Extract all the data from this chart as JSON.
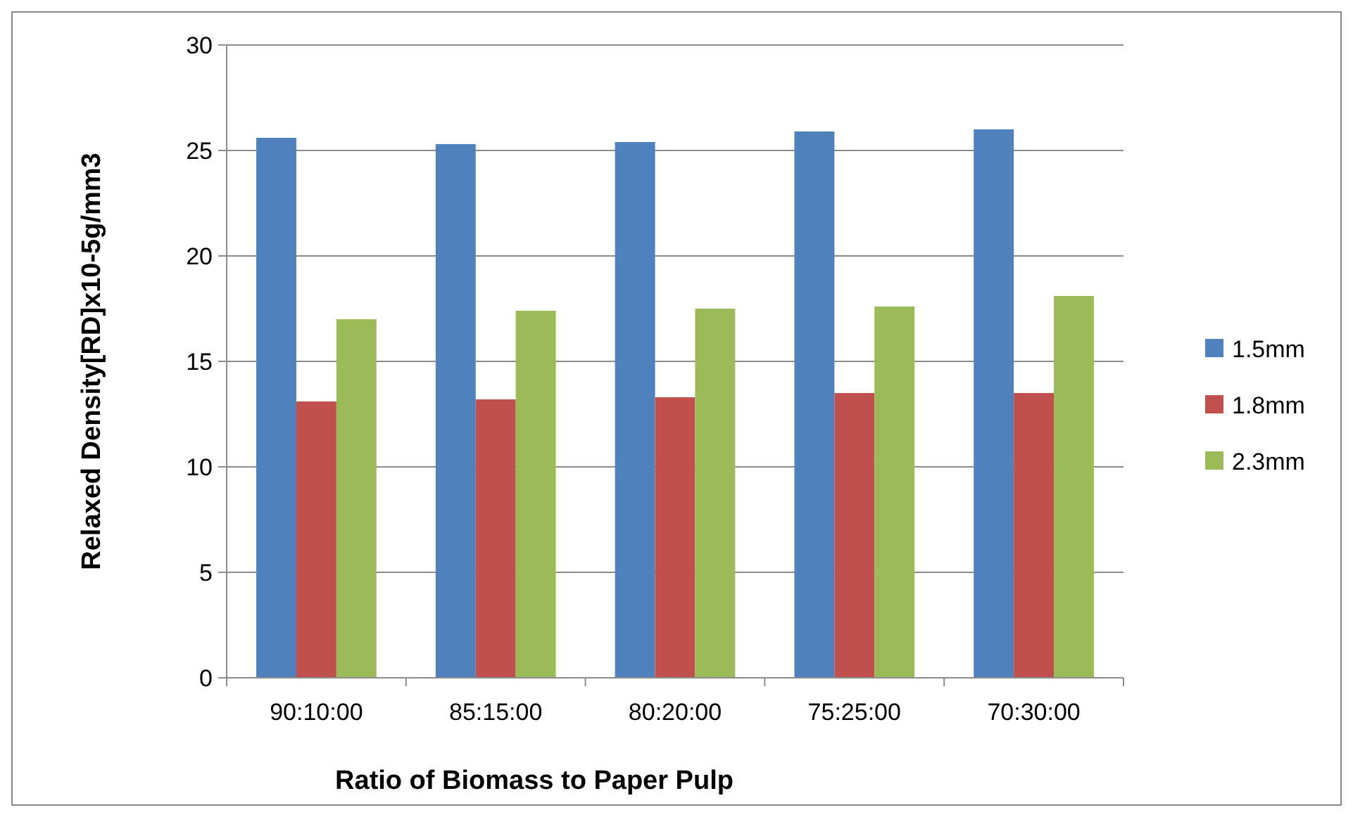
{
  "chart_data": {
    "type": "bar",
    "xlabel": "Ratio of Biomass to Paper Pulp",
    "ylabel": "Relaxed Density[RD]x10-5g/mm3",
    "categories": [
      "90:10:00",
      "85:15:00",
      "80:20:00",
      "75:25:00",
      "70:30:00"
    ],
    "series": [
      {
        "name": "1.5mm",
        "color": "#4f81bd",
        "values": [
          25.6,
          25.3,
          25.4,
          25.9,
          26.0
        ]
      },
      {
        "name": "1.8mm",
        "color": "#c0504d",
        "values": [
          13.1,
          13.2,
          13.3,
          13.5,
          13.5
        ]
      },
      {
        "name": "2.3mm",
        "color": "#9bbb59",
        "values": [
          17.0,
          17.4,
          17.5,
          17.6,
          18.1
        ]
      }
    ],
    "ylim": [
      0,
      30
    ],
    "yticks": [
      0,
      5,
      10,
      15,
      20,
      25,
      30
    ],
    "grid": "y",
    "legend": "right"
  }
}
